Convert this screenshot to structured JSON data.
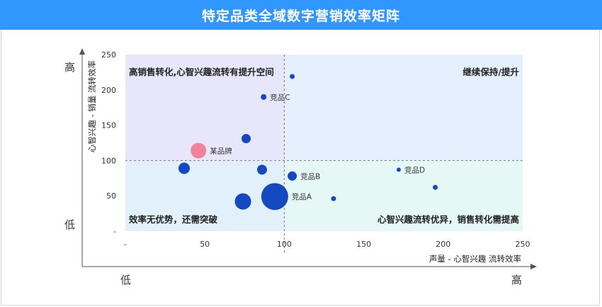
{
  "header": {
    "title": "特定品类全域数字营销效率矩阵"
  },
  "corner_labels": {
    "y_high": "高",
    "y_low": "低",
    "x_low": "低",
    "x_high": "高"
  },
  "colors": {
    "header_bg": "#2f97ff",
    "bubble": "#0a3fbd",
    "highlight_bubble": "#f27b95",
    "q_top_left": "#e8e6fa",
    "q_top_right": "#e4f0fd",
    "q_bottom_left": "#e1f0fb",
    "q_bottom_right": "#e5f8f6"
  },
  "chart_data": {
    "type": "scatter",
    "title": "",
    "xlabel": "声量 - 心智兴趣  流转效率",
    "ylabel": "心智兴趣 - 销量  流转效率",
    "xlim": [
      0,
      250
    ],
    "ylim": [
      0,
      250
    ],
    "x_ticks": [
      0,
      50,
      100,
      150,
      200,
      250
    ],
    "x_tick_labels": [
      "-",
      "50",
      "100",
      "150",
      "200",
      "250"
    ],
    "y_ticks": [
      0,
      50,
      100,
      150,
      200,
      250
    ],
    "y_tick_labels": [
      "-",
      "50",
      "100",
      "150",
      "200",
      "250"
    ],
    "divider": {
      "x": 100,
      "y": 100
    },
    "quadrants": [
      {
        "id": "top-left",
        "label": "高销售转化,心智兴趣流转有提升空间"
      },
      {
        "id": "top-right",
        "label": "继续保持/提升"
      },
      {
        "id": "bottom-left",
        "label": "效率无优势，还需突破"
      },
      {
        "id": "bottom-right",
        "label": "心智兴趣流转优异，销售转化需提高"
      }
    ],
    "points": [
      {
        "x": 105,
        "y": 219,
        "r": 3.5,
        "label": ""
      },
      {
        "x": 87,
        "y": 190,
        "r": 4,
        "label": "竞品C"
      },
      {
        "x": 76,
        "y": 131,
        "r": 6.5,
        "label": ""
      },
      {
        "x": 46,
        "y": 114,
        "r": 11,
        "label": "某品牌",
        "highlight": true
      },
      {
        "x": 37,
        "y": 89,
        "r": 8,
        "label": ""
      },
      {
        "x": 86,
        "y": 87,
        "r": 7,
        "label": ""
      },
      {
        "x": 105,
        "y": 78,
        "r": 6.5,
        "label": "竞品B"
      },
      {
        "x": 172,
        "y": 87,
        "r": 3,
        "label": "竞品D"
      },
      {
        "x": 195,
        "y": 62,
        "r": 3.5,
        "label": ""
      },
      {
        "x": 94,
        "y": 49,
        "r": 19,
        "label": "竞品A"
      },
      {
        "x": 74,
        "y": 42,
        "r": 11.5,
        "label": ""
      },
      {
        "x": 131,
        "y": 46,
        "r": 3.5,
        "label": ""
      }
    ]
  }
}
